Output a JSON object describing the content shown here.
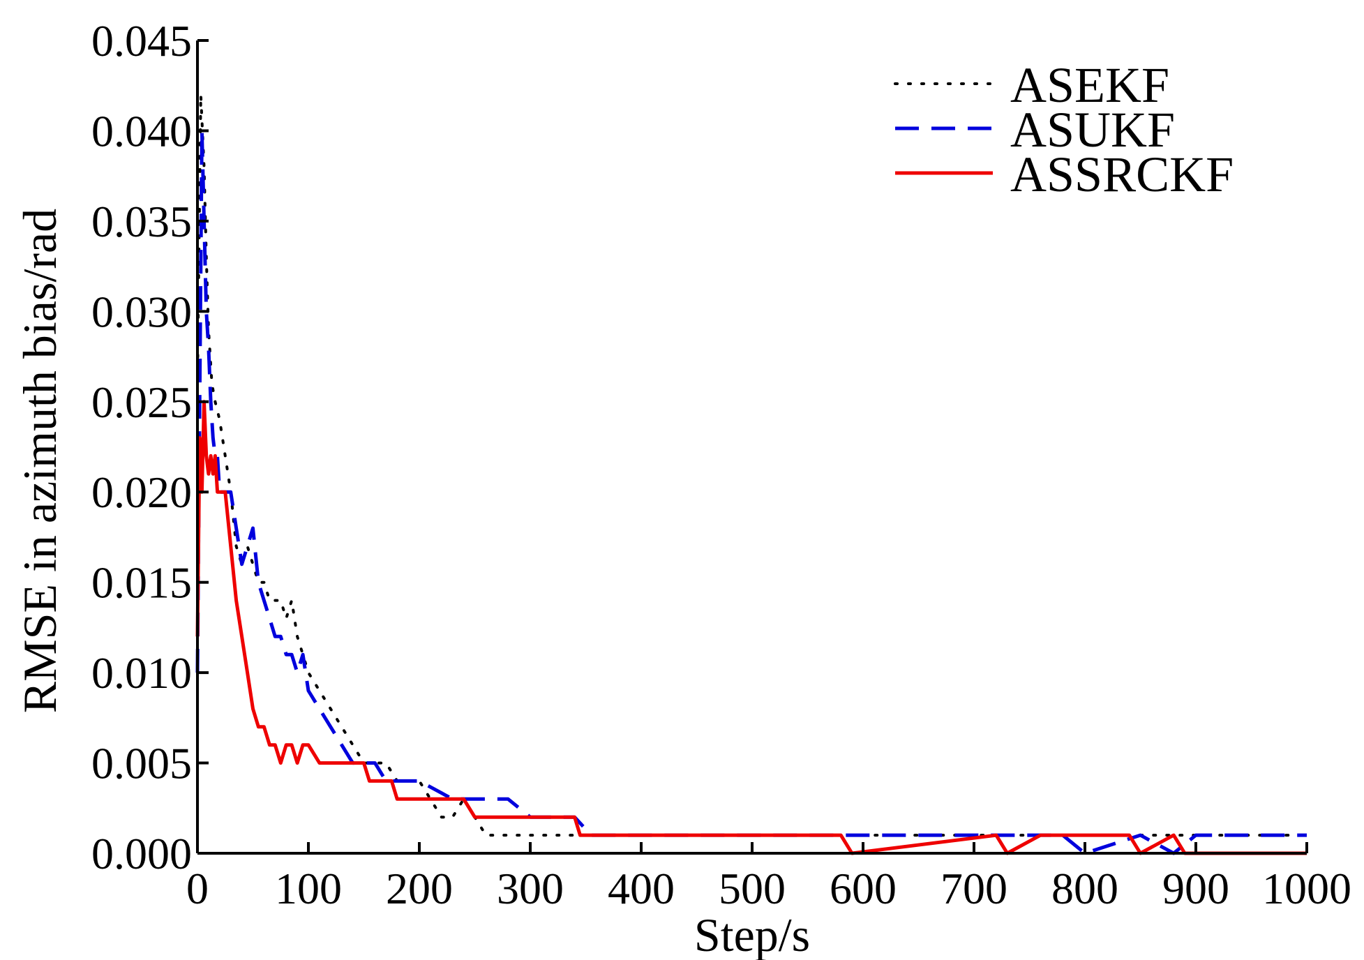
{
  "chart_data": {
    "type": "line",
    "title": "",
    "xlabel": "Step/s",
    "ylabel": "RMSE in azimuth bias/rad",
    "xlim": [
      0,
      1000
    ],
    "ylim": [
      0,
      0.045
    ],
    "xticks": [
      0,
      100,
      200,
      300,
      400,
      500,
      600,
      700,
      800,
      900,
      1000
    ],
    "xtick_labels": [
      "0",
      "100",
      "200",
      "300",
      "400",
      "500",
      "600",
      "700",
      "800",
      "900",
      "1000"
    ],
    "yticks": [
      0,
      0.005,
      0.01,
      0.015,
      0.02,
      0.025,
      0.03,
      0.035,
      0.04,
      0.045
    ],
    "ytick_labels": [
      "0.000",
      "0.005",
      "0.010",
      "0.015",
      "0.020",
      "0.025",
      "0.030",
      "0.035",
      "0.040",
      "0.045"
    ],
    "grid": false,
    "legend_position": "top-right",
    "series": [
      {
        "name": "ASEKF",
        "color": "#000000",
        "style": "dotted",
        "x": [
          0,
          3,
          6,
          8,
          10,
          13,
          16,
          20,
          25,
          30,
          35,
          40,
          45,
          50,
          55,
          60,
          65,
          70,
          75,
          80,
          85,
          90,
          95,
          100,
          110,
          120,
          130,
          140,
          150,
          160,
          170,
          180,
          190,
          200,
          210,
          220,
          230,
          240,
          250,
          260,
          270,
          280,
          290,
          300,
          320,
          340,
          360,
          400,
          460,
          500,
          560,
          600,
          650,
          700,
          760,
          800,
          850,
          900,
          1000
        ],
        "y": [
          0.026,
          0.042,
          0.038,
          0.033,
          0.029,
          0.026,
          0.025,
          0.024,
          0.022,
          0.02,
          0.017,
          0.016,
          0.017,
          0.016,
          0.015,
          0.015,
          0.014,
          0.014,
          0.014,
          0.013,
          0.014,
          0.012,
          0.011,
          0.01,
          0.009,
          0.008,
          0.007,
          0.006,
          0.005,
          0.005,
          0.005,
          0.004,
          0.004,
          0.004,
          0.003,
          0.002,
          0.002,
          0.003,
          0.002,
          0.001,
          0.001,
          0.001,
          0.001,
          0.001,
          0.001,
          0.001,
          0.001,
          0.001,
          0.001,
          0.001,
          0.001,
          0.001,
          0.001,
          0.001,
          0.001,
          0.001,
          0.001,
          0.001,
          0.001
        ]
      },
      {
        "name": "ASUKF",
        "color": "#0000dd",
        "style": "dashed",
        "x": [
          0,
          2,
          4,
          6,
          8,
          10,
          12,
          14,
          16,
          18,
          20,
          25,
          30,
          35,
          40,
          45,
          50,
          55,
          60,
          65,
          70,
          75,
          80,
          85,
          90,
          95,
          100,
          110,
          120,
          130,
          140,
          150,
          160,
          170,
          180,
          190,
          200,
          230,
          260,
          280,
          300,
          340,
          355,
          400,
          500,
          600,
          700,
          740,
          760,
          780,
          800,
          850,
          880,
          900,
          1000
        ],
        "y": [
          0.01,
          0.025,
          0.04,
          0.035,
          0.03,
          0.028,
          0.025,
          0.023,
          0.022,
          0.022,
          0.02,
          0.02,
          0.02,
          0.018,
          0.016,
          0.017,
          0.018,
          0.015,
          0.014,
          0.013,
          0.012,
          0.012,
          0.011,
          0.011,
          0.01,
          0.011,
          0.009,
          0.008,
          0.007,
          0.006,
          0.005,
          0.005,
          0.005,
          0.004,
          0.004,
          0.004,
          0.004,
          0.003,
          0.003,
          0.003,
          0.002,
          0.002,
          0.001,
          0.001,
          0.001,
          0.001,
          0.001,
          0.001,
          0.001,
          0.001,
          0.0,
          0.001,
          0.0,
          0.001,
          0.001
        ]
      },
      {
        "name": "ASSRCKF",
        "color": "#ee0000",
        "style": "solid",
        "x": [
          0,
          2,
          4,
          6,
          8,
          10,
          12,
          14,
          16,
          18,
          20,
          25,
          30,
          35,
          40,
          45,
          50,
          55,
          60,
          65,
          70,
          75,
          80,
          85,
          90,
          95,
          100,
          110,
          120,
          130,
          140,
          150,
          155,
          175,
          180,
          195,
          240,
          250,
          255,
          340,
          345,
          580,
          590,
          720,
          730,
          760,
          770,
          840,
          850,
          880,
          890,
          900,
          1000
        ],
        "y": [
          0.012,
          0.023,
          0.02,
          0.025,
          0.022,
          0.021,
          0.022,
          0.021,
          0.022,
          0.02,
          0.02,
          0.02,
          0.017,
          0.014,
          0.012,
          0.01,
          0.008,
          0.007,
          0.007,
          0.006,
          0.006,
          0.005,
          0.006,
          0.006,
          0.005,
          0.006,
          0.006,
          0.005,
          0.005,
          0.005,
          0.005,
          0.005,
          0.004,
          0.004,
          0.003,
          0.003,
          0.003,
          0.002,
          0.002,
          0.002,
          0.001,
          0.001,
          0.0,
          0.001,
          0.0,
          0.001,
          0.001,
          0.001,
          0.0,
          0.001,
          0.0,
          0.0,
          0.0
        ]
      }
    ]
  }
}
